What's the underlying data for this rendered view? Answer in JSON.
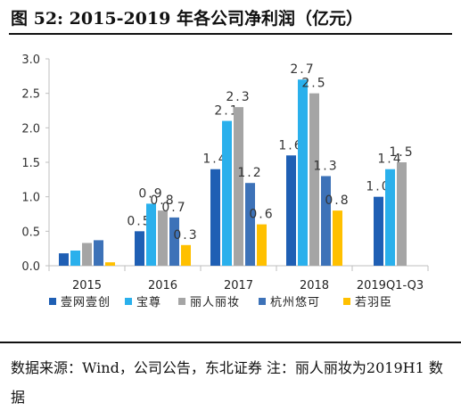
{
  "header": {
    "title": "图 52:  2015-2019 年各公司净利润（亿元）"
  },
  "footer": {
    "source": "数据来源：Wind，公司公告，东北证券 注：丽人丽妆为2019H1 数据"
  },
  "chart_data": {
    "type": "bar",
    "categories": [
      "2015",
      "2016",
      "2017",
      "2018",
      "2019Q1-Q3"
    ],
    "series": [
      {
        "name": "壹网壹创",
        "color": "#1f5fb4",
        "values": [
          0.18,
          0.5,
          1.4,
          1.6,
          1.0
        ]
      },
      {
        "name": "宝尊",
        "color": "#2ab0ec",
        "values": [
          0.22,
          0.9,
          2.1,
          2.7,
          1.4
        ]
      },
      {
        "name": "丽人丽妆",
        "color": "#a5a5a5",
        "values": [
          0.33,
          0.8,
          2.3,
          2.5,
          1.5
        ]
      },
      {
        "name": "杭州悠可",
        "color": "#3d72b8",
        "values": [
          0.37,
          0.7,
          1.2,
          1.3,
          null
        ]
      },
      {
        "name": "若羽臣",
        "color": "#ffc000",
        "values": [
          0.05,
          0.3,
          0.6,
          0.8,
          null
        ]
      }
    ],
    "data_labels": [
      [
        "",
        "",
        "",
        "",
        ""
      ],
      [
        "0.5",
        "0.9",
        "0.8",
        "0.7",
        "0.3"
      ],
      [
        "1.4",
        "2.1",
        "2.3",
        "1.2",
        "0.6"
      ],
      [
        "1.6",
        "2.7",
        "2.5",
        "1.3",
        "0.8"
      ],
      [
        "1.0",
        "1.4",
        "1.5",
        "",
        ""
      ]
    ],
    "yticks": [
      "0.0",
      "0.5",
      "1.0",
      "1.5",
      "2.0",
      "2.5",
      "3.0"
    ],
    "ylim": [
      0,
      3.0
    ],
    "grid": false,
    "legend_position": "bottom",
    "title": "",
    "xlabel": "",
    "ylabel": ""
  }
}
